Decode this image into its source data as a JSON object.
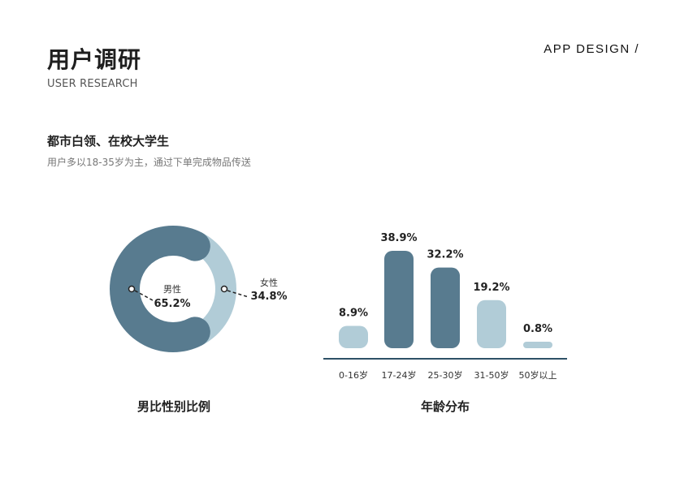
{
  "header": {
    "title": "用户调研",
    "subtitle": "USER RESEARCH",
    "brand": "APP  DESIGN  /"
  },
  "section": {
    "heading": "都市白领、在校大学生",
    "description": "用户多以18-35岁为主，通过下单完成物品传送"
  },
  "colors": {
    "dark": "#587b8f",
    "light": "#b1ccd7",
    "baseline": "#2e5166",
    "text": "#222222"
  },
  "chart_data": [
    {
      "type": "pie",
      "title": "男比性别比例",
      "slices": [
        {
          "label": "男性",
          "value": 65.2,
          "value_label": "65.2%",
          "color": "#587b8f"
        },
        {
          "label": "女性",
          "value": 34.8,
          "value_label": "34.8%",
          "color": "#b1ccd7"
        }
      ]
    },
    {
      "type": "bar",
      "title": "年龄分布",
      "categories": [
        "0-16岁",
        "17-24岁",
        "25-30岁",
        "31-50岁",
        "50岁以上"
      ],
      "values": [
        8.9,
        38.9,
        32.2,
        19.2,
        0.8
      ],
      "value_labels": [
        "8.9%",
        "38.9%",
        "32.2%",
        "19.2%",
        "0.8%"
      ],
      "bar_colors": [
        "#b1ccd7",
        "#587b8f",
        "#587b8f",
        "#b1ccd7",
        "#b1ccd7"
      ]
    }
  ]
}
